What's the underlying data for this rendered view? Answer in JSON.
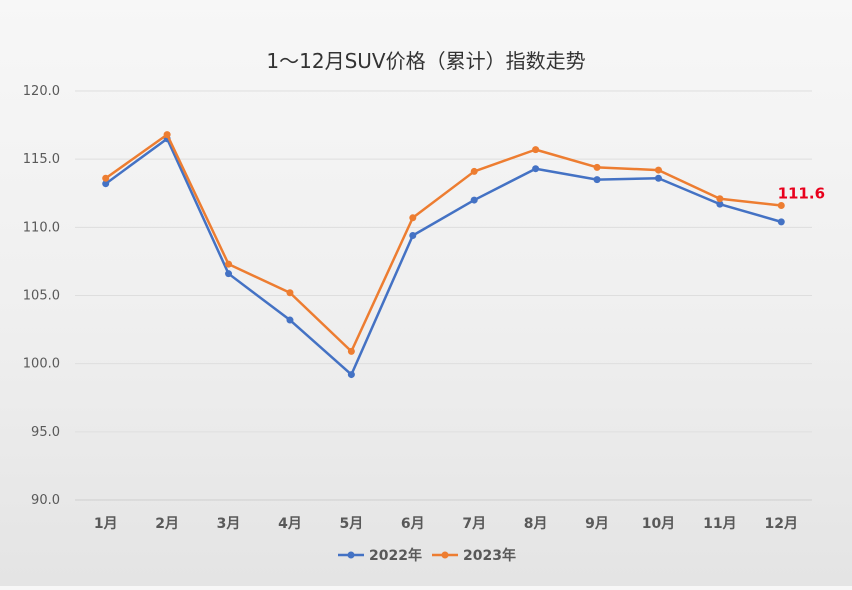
{
  "chart_data": {
    "type": "line",
    "title": "1～12月SUV价格（累计）指数走势",
    "categories": [
      "1月",
      "2月",
      "3月",
      "4月",
      "5月",
      "6月",
      "7月",
      "8月",
      "9月",
      "10月",
      "11月",
      "12月"
    ],
    "series": [
      {
        "name": "2022年",
        "color": "#4472C4",
        "values": [
          113.2,
          116.5,
          106.6,
          103.2,
          99.2,
          109.4,
          112.0,
          114.3,
          113.5,
          113.6,
          111.7,
          110.4
        ]
      },
      {
        "name": "2023年",
        "color": "#ED7D31",
        "values": [
          113.6,
          116.8,
          107.3,
          105.2,
          100.9,
          110.7,
          114.1,
          115.7,
          114.4,
          114.2,
          112.1,
          111.6
        ]
      }
    ],
    "y_ticks": [
      "120.0",
      "115.0",
      "110.0",
      "105.0",
      "100.0",
      "95.0",
      "90.0"
    ],
    "ylim": [
      90,
      120
    ],
    "grid": true,
    "legend_position": "bottom",
    "annotation": {
      "text": "111.6",
      "series": "2023年",
      "category": "12月",
      "color": "#E8001C"
    }
  }
}
